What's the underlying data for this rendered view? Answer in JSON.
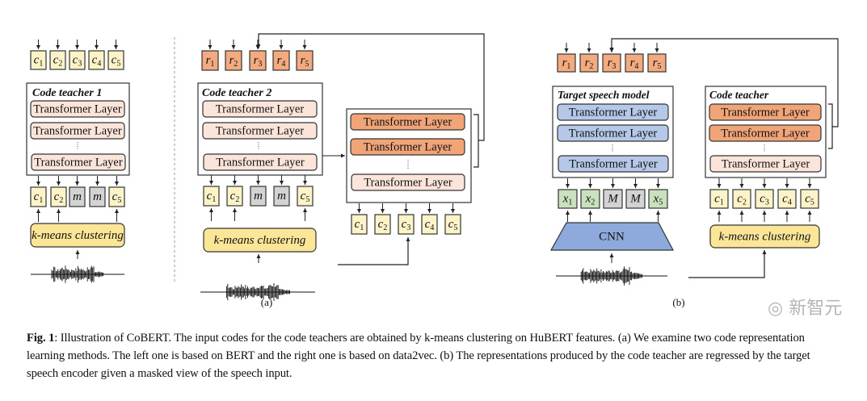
{
  "colors": {
    "code_box": "#fdf3c9",
    "mask_box": "#d3d3d3",
    "target_box": "#f2aa7e",
    "input_x_box": "#c9e2bd",
    "layer_light": "#fbe5db",
    "layer_orange": "#f0a478",
    "layer_blue": "#b5c8e8",
    "cnn": "#8ea9db",
    "kmeans": "#fbe597",
    "stroke": "#333333"
  },
  "layer_label": "Transformer Layer",
  "kmeans_label": "k-means clustering",
  "panel_a": {
    "label": "(a)",
    "bert": {
      "title": "Code teacher 1",
      "outputs": [
        {
          "v": "c",
          "sub": "1"
        },
        {
          "v": "c",
          "sub": "2"
        },
        {
          "v": "c",
          "sub": "3"
        },
        {
          "v": "c",
          "sub": "4"
        },
        {
          "v": "c",
          "sub": "5"
        }
      ],
      "inputs": [
        {
          "v": "c",
          "sub": "1"
        },
        {
          "v": "c",
          "sub": "2"
        },
        {
          "v": "m",
          "sub": "",
          "masked": true
        },
        {
          "v": "m",
          "sub": "",
          "masked": true
        },
        {
          "v": "c",
          "sub": "5"
        }
      ]
    },
    "data2vec": {
      "title": "Code teacher 2",
      "outputs": [
        {
          "v": "r",
          "sub": "1"
        },
        {
          "v": "r",
          "sub": "2"
        },
        {
          "v": "r",
          "sub": "3"
        },
        {
          "v": "r",
          "sub": "4"
        },
        {
          "v": "r",
          "sub": "5"
        }
      ],
      "inputs": [
        {
          "v": "c",
          "sub": "1"
        },
        {
          "v": "c",
          "sub": "2"
        },
        {
          "v": "m",
          "sub": "",
          "masked": true
        },
        {
          "v": "m",
          "sub": "",
          "masked": true
        },
        {
          "v": "c",
          "sub": "5"
        }
      ],
      "teacher_inputs": [
        {
          "v": "c",
          "sub": "1"
        },
        {
          "v": "c",
          "sub": "2"
        },
        {
          "v": "c",
          "sub": "3"
        },
        {
          "v": "c",
          "sub": "4"
        },
        {
          "v": "c",
          "sub": "5"
        }
      ]
    }
  },
  "panel_b": {
    "label": "(b)",
    "student_title": "Target speech model",
    "teacher_title": "Code teacher",
    "cnn_label": "CNN",
    "outputs": [
      {
        "v": "r",
        "sub": "1"
      },
      {
        "v": "r",
        "sub": "2"
      },
      {
        "v": "r",
        "sub": "3"
      },
      {
        "v": "r",
        "sub": "4"
      },
      {
        "v": "r",
        "sub": "5"
      }
    ],
    "inputs": [
      {
        "v": "x",
        "sub": "1"
      },
      {
        "v": "x",
        "sub": "2"
      },
      {
        "v": "M",
        "sub": "",
        "masked": true
      },
      {
        "v": "M",
        "sub": "",
        "masked": true
      },
      {
        "v": "x",
        "sub": "5"
      }
    ],
    "teacher_inputs": [
      {
        "v": "c",
        "sub": "1"
      },
      {
        "v": "c",
        "sub": "2"
      },
      {
        "v": "c",
        "sub": "3"
      },
      {
        "v": "c",
        "sub": "4"
      },
      {
        "v": "c",
        "sub": "5"
      }
    ]
  },
  "caption": {
    "label": "Fig. 1",
    "text": ": Illustration of CoBERT. The input codes for the code teachers are obtained by k-means clustering on HuBERT features. (a) We examine two code representation learning methods.  The left one is based on BERT and the right one is based on data2vec.  (b) The representations produced by the code teacher are regressed by the target speech encoder given a masked view of the speech input."
  },
  "watermark": "新智元"
}
